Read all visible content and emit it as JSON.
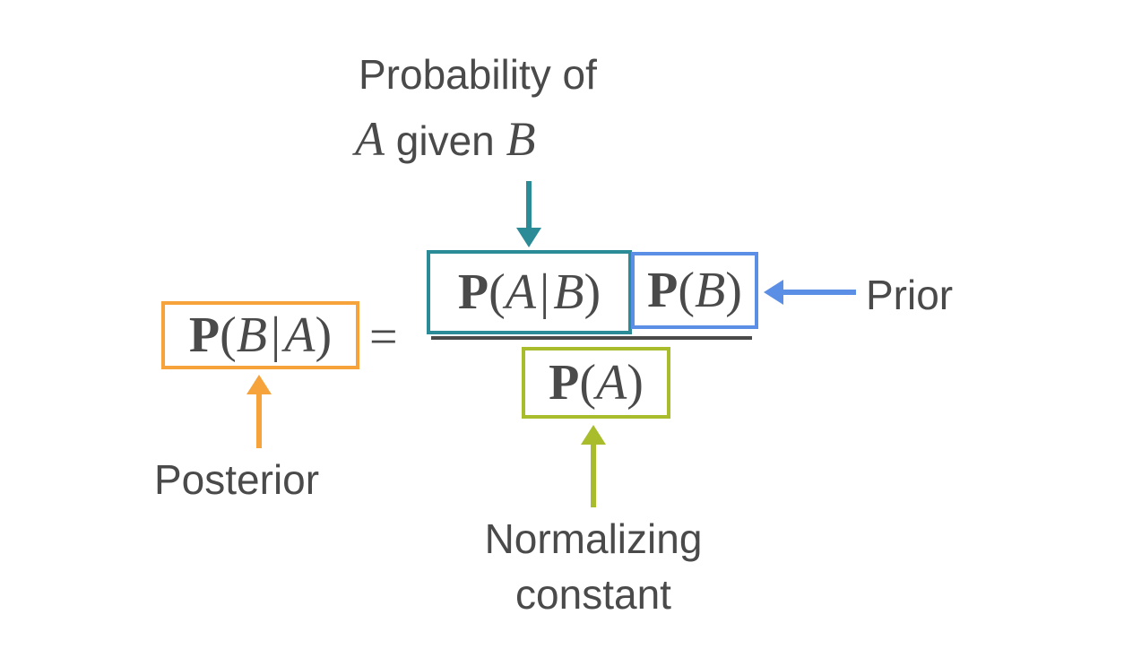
{
  "top_label": {
    "line1": "Probability of",
    "line2_var1": "A",
    "line2_word": "given",
    "line2_var2": "B"
  },
  "equation": {
    "lhs": {
      "P": "P",
      "open": "(",
      "B": "B",
      "bar": "|",
      "A": "A",
      "close": ")"
    },
    "equals": "=",
    "likelihood": {
      "P": "P",
      "open": "(",
      "A": "A",
      "bar": "|",
      "B": "B",
      "close": ")"
    },
    "prior": {
      "P": "P",
      "open": "(",
      "B": "B",
      "close": ")"
    },
    "denominator": {
      "P": "P",
      "open": "(",
      "A": "A",
      "close": ")"
    }
  },
  "labels": {
    "prior": "Prior",
    "posterior": "Posterior",
    "normalizing_line1": "Normalizing",
    "normalizing_line2": "constant"
  },
  "colors": {
    "posterior": "#f5a33a",
    "likelihood": "#2b8c97",
    "prior": "#5b8fe6",
    "normalizing": "#a9bd2c",
    "text": "#4a4a4a"
  }
}
